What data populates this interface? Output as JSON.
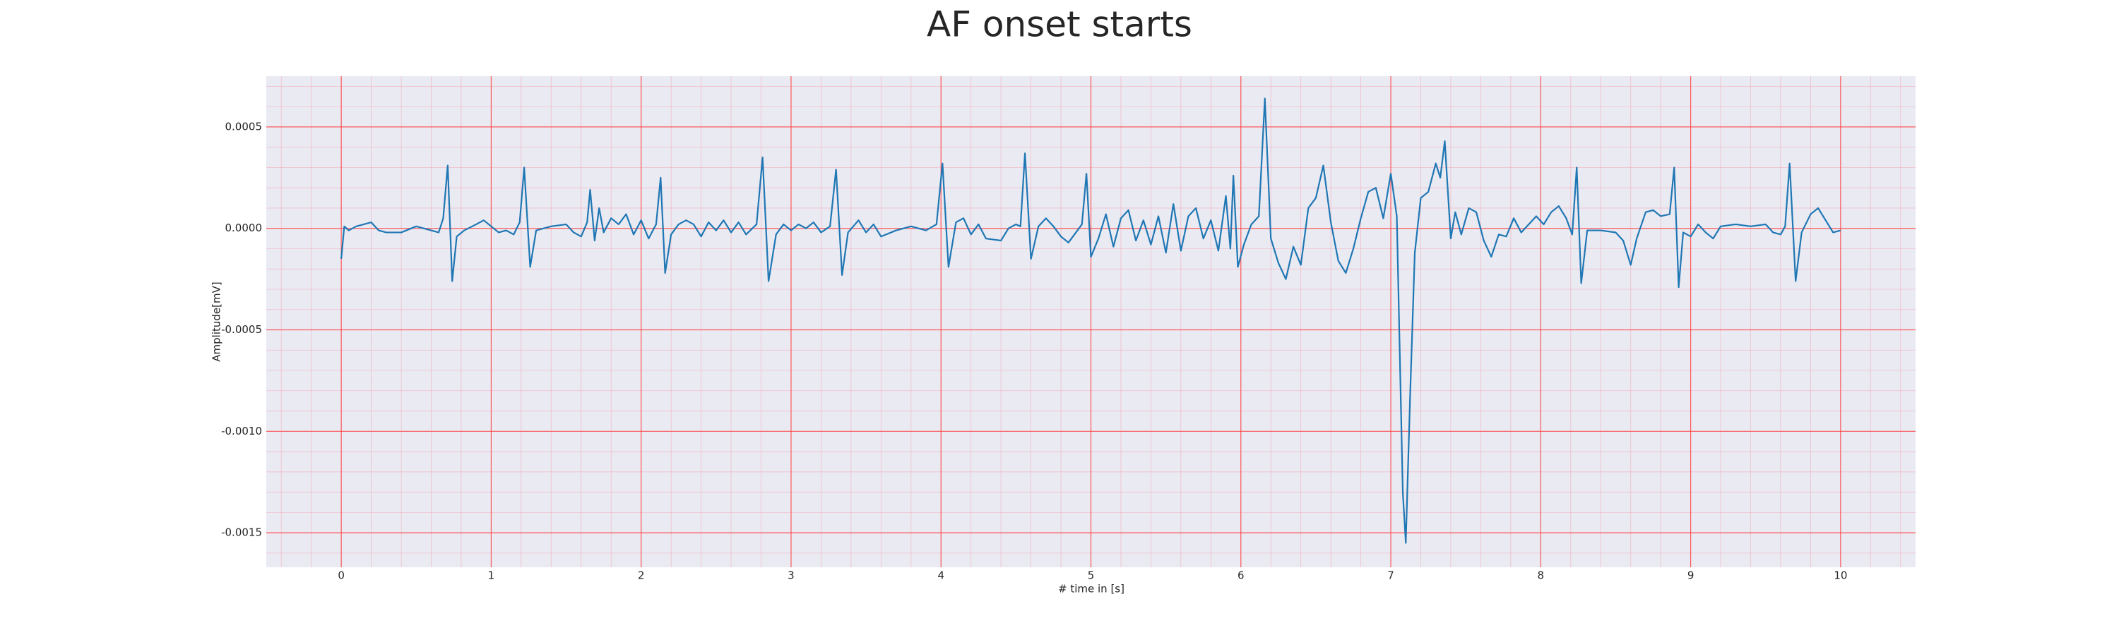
{
  "chart_data": {
    "type": "line",
    "title": "AF onset starts",
    "xlabel": "# time in [s]",
    "ylabel": "Amplitude[mV]",
    "color": "#1f77b4",
    "grid": true,
    "minor_grid": true,
    "xlim": [
      -0.5,
      10.5
    ],
    "ylim": [
      -0.00167,
      0.00075
    ],
    "xticks": [
      0,
      1,
      2,
      3,
      4,
      5,
      6,
      7,
      8,
      9,
      10
    ],
    "yticks": [
      {
        "value": -0.0015,
        "label": "-0.0015"
      },
      {
        "value": -0.001,
        "label": "-0.0010"
      },
      {
        "value": -0.0005,
        "label": "-0.0005"
      },
      {
        "value": 0,
        "label": "0.0000"
      },
      {
        "value": 0.0005,
        "label": "0.0005"
      }
    ],
    "x": [
      0,
      0.02,
      0.05,
      0.1,
      0.15,
      0.2,
      0.25,
      0.3,
      0.4,
      0.5,
      0.6,
      0.65,
      0.68,
      0.71,
      0.74,
      0.77,
      0.82,
      0.9,
      0.95,
      1.0,
      1.05,
      1.1,
      1.15,
      1.19,
      1.22,
      1.26,
      1.3,
      1.4,
      1.5,
      1.55,
      1.6,
      1.64,
      1.66,
      1.69,
      1.72,
      1.75,
      1.8,
      1.85,
      1.9,
      1.95,
      2.0,
      2.05,
      2.1,
      2.13,
      2.16,
      2.2,
      2.25,
      2.3,
      2.35,
      2.4,
      2.45,
      2.5,
      2.55,
      2.6,
      2.65,
      2.7,
      2.77,
      2.81,
      2.85,
      2.9,
      2.95,
      3.0,
      3.05,
      3.1,
      3.15,
      3.2,
      3.26,
      3.3,
      3.34,
      3.38,
      3.45,
      3.5,
      3.55,
      3.6,
      3.7,
      3.8,
      3.9,
      3.97,
      4.01,
      4.05,
      4.1,
      4.15,
      4.2,
      4.25,
      4.3,
      4.4,
      4.45,
      4.5,
      4.53,
      4.56,
      4.6,
      4.65,
      4.7,
      4.75,
      4.8,
      4.85,
      4.9,
      4.94,
      4.97,
      5.0,
      5.05,
      5.1,
      5.15,
      5.2,
      5.25,
      5.3,
      5.35,
      5.4,
      5.45,
      5.5,
      5.55,
      5.6,
      5.65,
      5.7,
      5.75,
      5.8,
      5.85,
      5.9,
      5.93,
      5.95,
      5.98,
      6.02,
      6.07,
      6.12,
      6.16,
      6.2,
      6.25,
      6.3,
      6.35,
      6.4,
      6.45,
      6.5,
      6.55,
      6.6,
      6.65,
      6.7,
      6.75,
      6.8,
      6.85,
      6.9,
      6.95,
      7.0,
      7.04,
      7.08,
      7.1,
      7.13,
      7.16,
      7.2,
      7.25,
      7.3,
      7.33,
      7.36,
      7.4,
      7.43,
      7.47,
      7.52,
      7.57,
      7.62,
      7.67,
      7.72,
      7.77,
      7.82,
      7.87,
      7.92,
      7.97,
      8.02,
      8.07,
      8.12,
      8.17,
      8.21,
      8.24,
      8.27,
      8.31,
      8.4,
      8.5,
      8.55,
      8.6,
      8.64,
      8.7,
      8.75,
      8.8,
      8.86,
      8.89,
      8.92,
      8.95,
      9.0,
      9.05,
      9.1,
      9.15,
      9.2,
      9.3,
      9.4,
      9.5,
      9.55,
      9.6,
      9.63,
      9.66,
      9.7,
      9.74,
      9.8,
      9.85,
      9.9,
      9.95,
      10.0
    ],
    "values": [
      -0.00015,
      1e-05,
      -1e-05,
      1e-05,
      2e-05,
      3e-05,
      -1e-05,
      -2e-05,
      -2e-05,
      1e-05,
      -1e-05,
      -2e-05,
      5e-05,
      0.00031,
      -0.00026,
      -4e-05,
      -1e-05,
      2e-05,
      4e-05,
      1e-05,
      -2e-05,
      -1e-05,
      -3e-05,
      3e-05,
      0.0003,
      -0.00019,
      -1e-05,
      1e-05,
      2e-05,
      -2e-05,
      -4e-05,
      3e-05,
      0.00019,
      -6e-05,
      0.0001,
      -2e-05,
      5e-05,
      2e-05,
      7e-05,
      -3e-05,
      4e-05,
      -5e-05,
      2e-05,
      0.00025,
      -0.00022,
      -3e-05,
      2e-05,
      4e-05,
      2e-05,
      -4e-05,
      3e-05,
      -1e-05,
      4e-05,
      -2e-05,
      3e-05,
      -3e-05,
      2e-05,
      0.00035,
      -0.00026,
      -3e-05,
      2e-05,
      -1e-05,
      2e-05,
      0,
      3e-05,
      -2e-05,
      1e-05,
      0.00029,
      -0.00023,
      -2e-05,
      4e-05,
      -2e-05,
      2e-05,
      -4e-05,
      -1e-05,
      1e-05,
      -1e-05,
      2e-05,
      0.00032,
      -0.00019,
      3e-05,
      5e-05,
      -3e-05,
      2e-05,
      -5e-05,
      -6e-05,
      0,
      2e-05,
      1e-05,
      0.00037,
      -0.00015,
      1e-05,
      5e-05,
      1e-05,
      -4e-05,
      -7e-05,
      -2e-05,
      2e-05,
      0.00027,
      -0.00014,
      -5e-05,
      7e-05,
      -9e-05,
      5e-05,
      9e-05,
      -6e-05,
      4e-05,
      -8e-05,
      6e-05,
      -0.00012,
      0.00012,
      -0.00011,
      6e-05,
      0.0001,
      -5e-05,
      4e-05,
      -0.00011,
      0.00016,
      -0.0001,
      0.00026,
      -0.00019,
      -8e-05,
      2e-05,
      6e-05,
      0.00064,
      -5e-05,
      -0.00017,
      -0.00025,
      -9e-05,
      -0.00018,
      0.0001,
      0.00015,
      0.00031,
      3e-05,
      -0.00016,
      -0.00022,
      -0.0001,
      5e-05,
      0.00018,
      0.0002,
      5e-05,
      0.00027,
      6e-05,
      -0.0013,
      -0.00155,
      -0.0008,
      -0.00012,
      0.00015,
      0.00018,
      0.00032,
      0.00025,
      0.00043,
      -5e-05,
      8e-05,
      -3e-05,
      0.0001,
      8e-05,
      -6e-05,
      -0.00014,
      -3e-05,
      -4e-05,
      5e-05,
      -2e-05,
      2e-05,
      6e-05,
      2e-05,
      8e-05,
      0.00011,
      5e-05,
      -3e-05,
      0.0003,
      -0.00027,
      -1e-05,
      -1e-05,
      -2e-05,
      -6e-05,
      -0.00018,
      -5e-05,
      8e-05,
      9e-05,
      6e-05,
      7e-05,
      0.0003,
      -0.00029,
      -2e-05,
      -4e-05,
      2e-05,
      -2e-05,
      -5e-05,
      1e-05,
      2e-05,
      1e-05,
      2e-05,
      -2e-05,
      -3e-05,
      1e-05,
      0.00032,
      -0.00026,
      -2e-05,
      7e-05,
      0.0001,
      4e-05,
      -2e-05,
      -1e-05
    ]
  }
}
